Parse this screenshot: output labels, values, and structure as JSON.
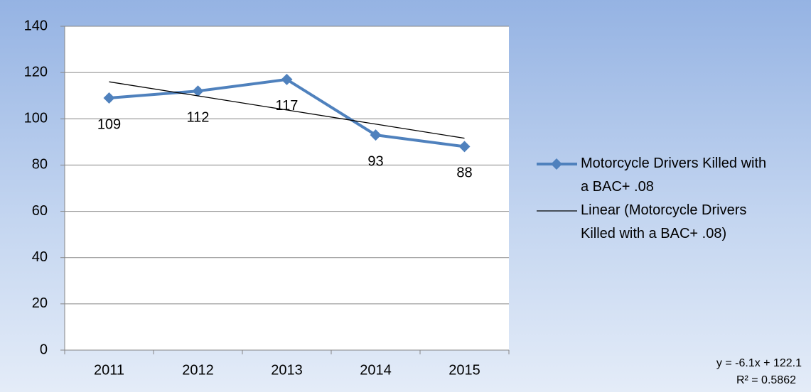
{
  "chart_data": {
    "type": "line",
    "categories": [
      "2011",
      "2012",
      "2013",
      "2014",
      "2015"
    ],
    "series": [
      {
        "name": "Motorcycle Drivers Killed with a BAC+ .08",
        "color": "#4f81bd",
        "values": [
          109,
          112,
          117,
          93,
          88
        ],
        "marker": "diamond",
        "data_labels": true
      },
      {
        "name": "Linear (Motorcycle Drivers Killed with a BAC+ .08)",
        "color": "#000000",
        "values": [
          116.0,
          109.9,
          103.8,
          97.7,
          91.6
        ]
      }
    ],
    "ylim": [
      0,
      140
    ],
    "yticks": [
      0,
      20,
      40,
      60,
      80,
      100,
      120,
      140
    ],
    "grid": true,
    "legend": "right",
    "annotations": [
      "y = -6.1x + 122.1",
      "R² = 0.5862"
    ]
  }
}
